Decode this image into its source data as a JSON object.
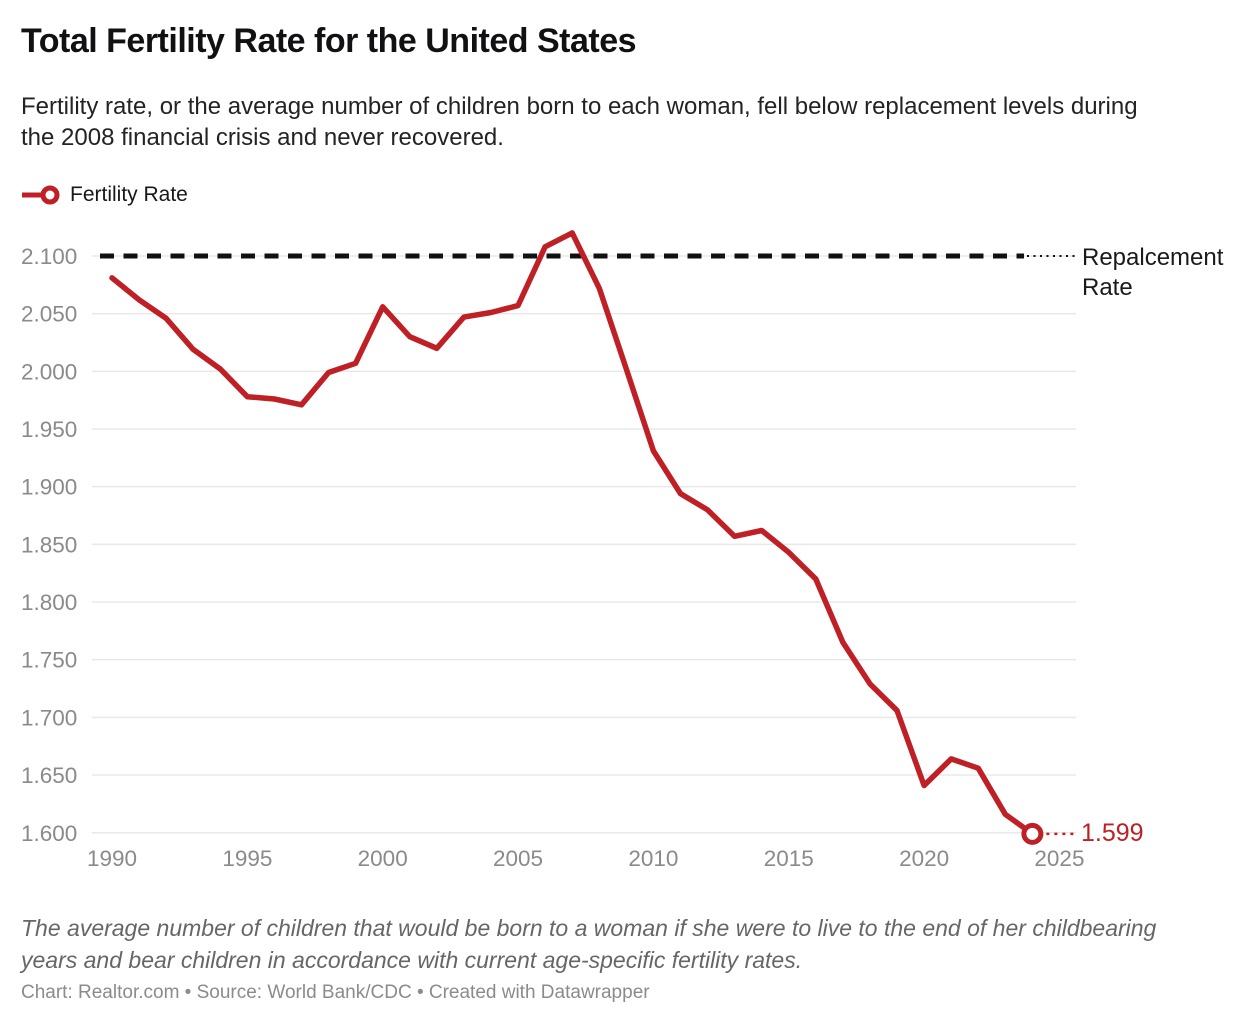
{
  "colors": {
    "line": "#bf2025",
    "replacement_dash": "#111111",
    "grid": "#e8e8e8",
    "tick_label": "#8a8a8a",
    "marker_fill": "#ffffff"
  },
  "footer": {
    "note": "The average number of children that would be born to a woman if she were to live to the end of her childbearing years and bear children in accordance with current age-specific fertility rates.",
    "credit": "Chart: Realtor.com • Source: World Bank/CDC • Created with Datawrapper"
  },
  "chart_data": {
    "type": "line",
    "title": "Total Fertility Rate for the United States",
    "subtitle": "Fertility rate, or the average number of children born to each woman, fell below replacement levels during the 2008 financial crisis and never recovered.",
    "xlabel": "",
    "ylabel": "",
    "grid": true,
    "legend_position": "top-left",
    "xlim": [
      1990,
      2025
    ],
    "ylim": [
      1.6,
      2.1
    ],
    "x_ticks": [
      1990,
      1995,
      2000,
      2005,
      2010,
      2015,
      2020,
      2025
    ],
    "y_ticks": [
      "1.600",
      "1.650",
      "1.700",
      "1.750",
      "1.800",
      "1.850",
      "1.900",
      "1.950",
      "2.000",
      "2.050",
      "2.100"
    ],
    "series": [
      {
        "name": "Fertility Rate",
        "x": [
          1990,
          1991,
          1992,
          1993,
          1994,
          1995,
          1996,
          1997,
          1998,
          1999,
          2000,
          2001,
          2002,
          2003,
          2004,
          2005,
          2006,
          2007,
          2008,
          2009,
          2010,
          2011,
          2012,
          2013,
          2014,
          2015,
          2016,
          2017,
          2018,
          2019,
          2020,
          2021,
          2022,
          2023,
          2024
        ],
        "values": [
          2.081,
          2.062,
          2.046,
          2.019,
          2.002,
          1.978,
          1.976,
          1.971,
          1.999,
          2.007,
          2.056,
          2.03,
          2.02,
          2.047,
          2.051,
          2.057,
          2.108,
          2.12,
          2.072,
          2.002,
          1.931,
          1.894,
          1.88,
          1.857,
          1.862,
          1.843,
          1.82,
          1.765,
          1.729,
          1.706,
          1.641,
          1.664,
          1.656,
          1.616,
          1.599
        ]
      }
    ],
    "annotations": {
      "replacement_rate": {
        "value": 2.1,
        "label_line1": "Repalcement",
        "label_line2": "Rate"
      },
      "end_label": {
        "value": 1.599,
        "text": "1.599"
      }
    }
  }
}
